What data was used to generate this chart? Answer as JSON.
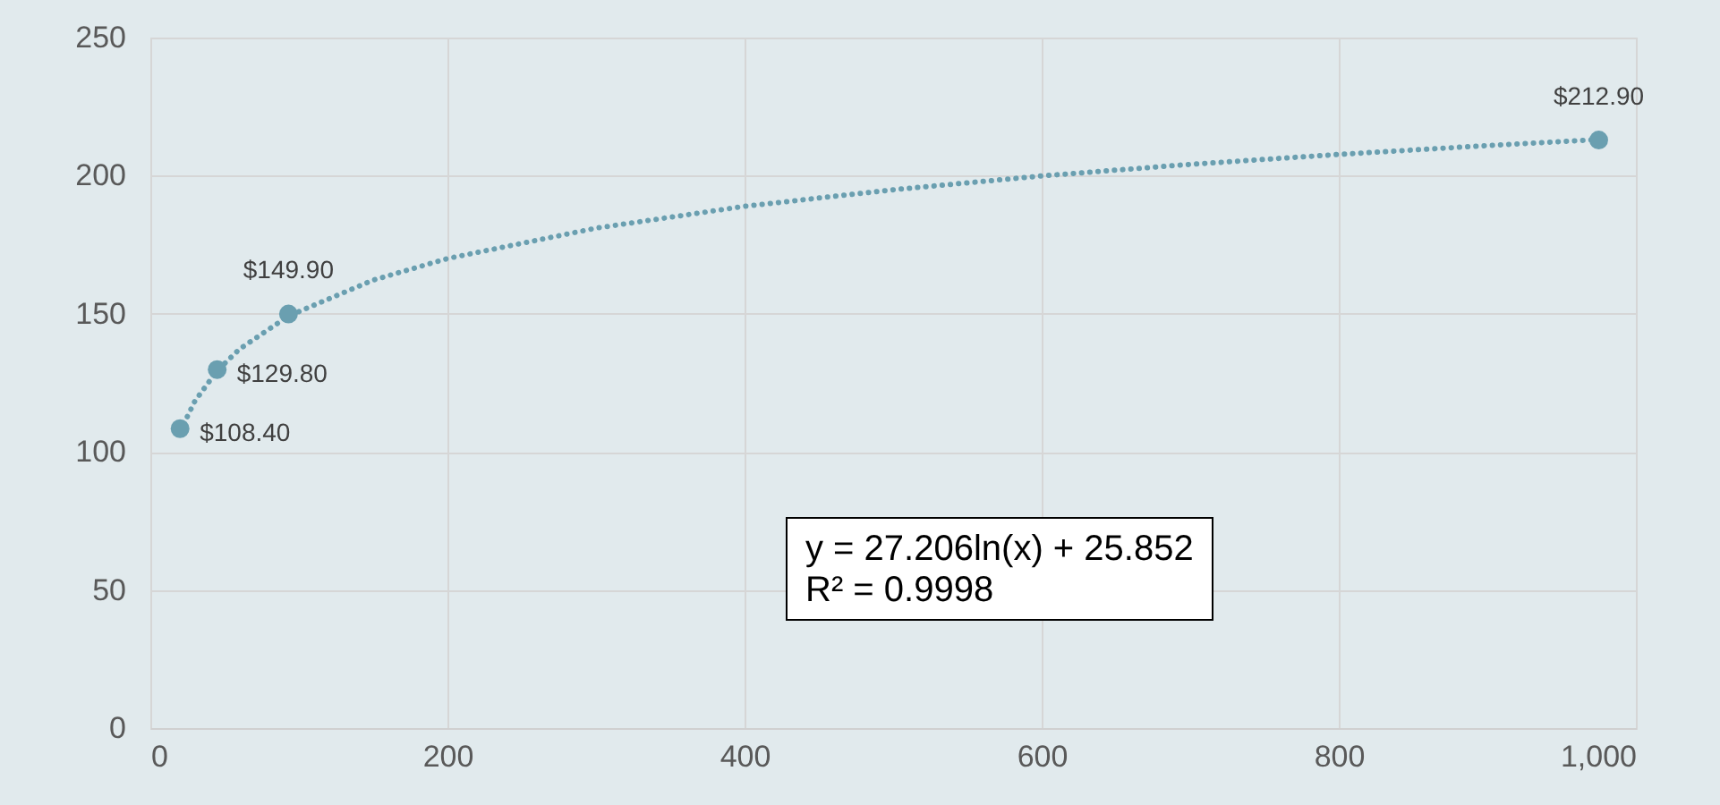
{
  "chart_data": {
    "type": "scatter",
    "xlim": [
      0,
      1000
    ],
    "xticks": [
      0,
      200,
      400,
      600,
      800,
      {
        "value": 1000,
        "label": "1,000"
      }
    ],
    "ylim": [
      0,
      250
    ],
    "yticks": [
      0,
      50,
      100,
      150,
      200,
      250
    ],
    "grid": true,
    "series": [
      {
        "marker": "circle",
        "color": "#6a9fb0",
        "x": [
          20,
          45,
          93,
          975
        ],
        "values": [
          108.4,
          129.8,
          149.9,
          212.9
        ],
        "value_labels": [
          "$108.40",
          "$129.80",
          "$149.90",
          "$212.90"
        ]
      },
      {
        "type": "line",
        "color": "#6a9fb0",
        "line_style": "dotted",
        "x": [
          20,
          30,
          45,
          60,
          93,
          150,
          200,
          300,
          400,
          500,
          600,
          700,
          800,
          900,
          975
        ],
        "values": [
          107.4,
          118.4,
          129.4,
          137.2,
          149.2,
          162.2,
          170.0,
          181.0,
          188.9,
          194.9,
          199.9,
          204.1,
          207.7,
          210.9,
          213.1
        ]
      }
    ],
    "annotations": [
      "y = 27.206ln(x) + 25.852",
      "R² = 0.9998"
    ]
  }
}
